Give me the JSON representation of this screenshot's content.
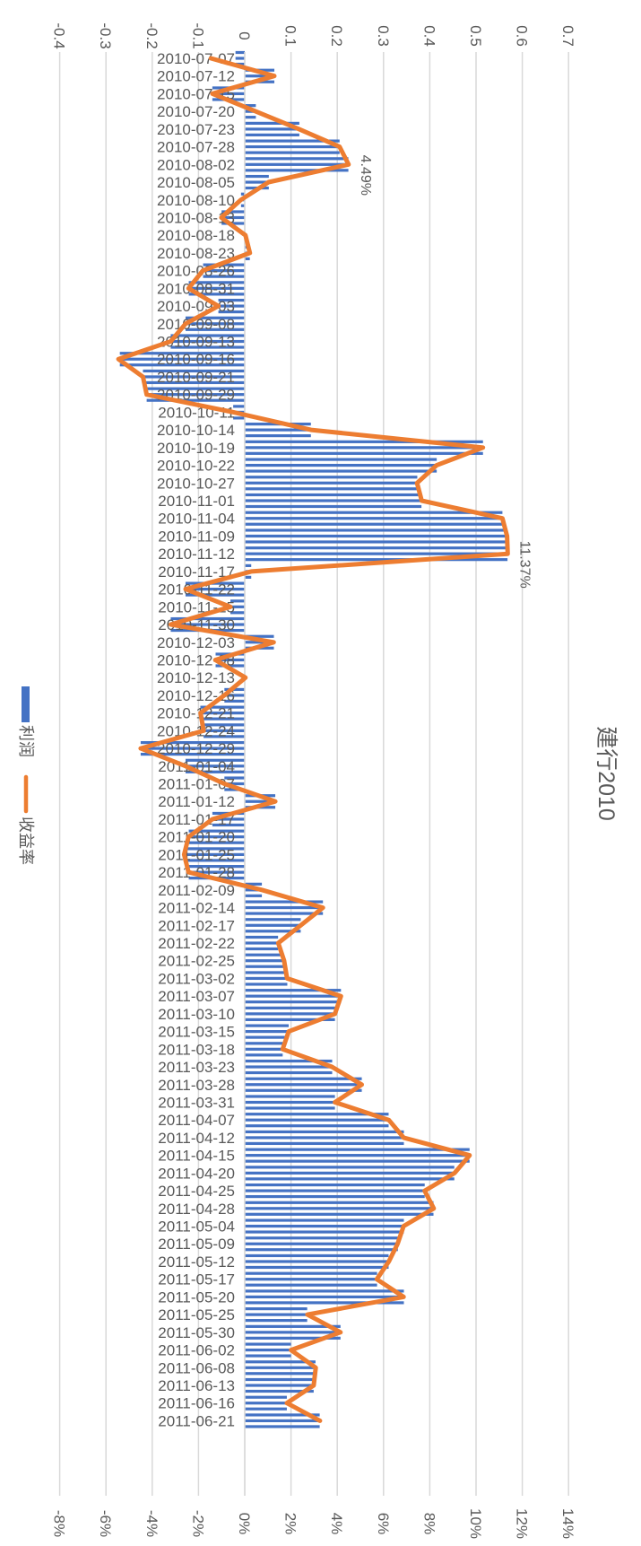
{
  "chart_data": {
    "type": "bar+line",
    "orientation": "rotated-90-clockwise",
    "title": "建行2010",
    "legend": {
      "position": "bottom",
      "entries": [
        "利润",
        "收益率"
      ]
    },
    "colors": {
      "bars": "#4472C4",
      "line": "#ED7D31",
      "grid": "#D9D9D9",
      "text": "#595959"
    },
    "primary_axis": {
      "min": -0.4,
      "max": 0.7,
      "step": 0.1,
      "ticks": [
        "-0.4",
        "-0.3",
        "-0.2",
        "-0.1",
        "0",
        "0.1",
        "0.2",
        "0.3",
        "0.4",
        "0.5",
        "0.6",
        "0.7"
      ]
    },
    "secondary_axis": {
      "min": -8,
      "max": 14,
      "step": 2,
      "unit": "%",
      "ticks": [
        "-8%",
        "-6%",
        "-4%",
        "-2%",
        "0%",
        "2%",
        "4%",
        "6%",
        "8%",
        "10%",
        "12%",
        "14%"
      ]
    },
    "grid": true,
    "categories": [
      "2010-07-07",
      "2010-07-12",
      "2010-07-15",
      "2010-07-20",
      "2010-07-23",
      "2010-07-28",
      "2010-08-02",
      "2010-08-05",
      "2010-08-10",
      "2010-08-13",
      "2010-08-18",
      "2010-08-23",
      "2010-08-26",
      "2010-08-31",
      "2010-09-03",
      "2010-09-08",
      "2010-09-13",
      "2010-09-16",
      "2010-09-21",
      "2010-09-29",
      "2010-10-11",
      "2010-10-14",
      "2010-10-19",
      "2010-10-22",
      "2010-10-27",
      "2010-11-01",
      "2010-11-04",
      "2010-11-09",
      "2010-11-12",
      "2010-11-17",
      "2010-11-22",
      "2010-11-25",
      "2010-11-30",
      "2010-12-03",
      "2010-12-08",
      "2010-12-13",
      "2010-12-16",
      "2010-12-21",
      "2010-12-24",
      "2010-12-29",
      "2011-01-04",
      "2011-01-07",
      "2011-01-12",
      "2011-01-17",
      "2011-01-20",
      "2011-01-25",
      "2011-01-28",
      "2011-02-09",
      "2011-02-14",
      "2011-02-17",
      "2011-02-22",
      "2011-02-25",
      "2011-03-02",
      "2011-03-07",
      "2011-03-10",
      "2011-03-15",
      "2011-03-18",
      "2011-03-23",
      "2011-03-28",
      "2011-03-31",
      "2011-04-07",
      "2011-04-12",
      "2011-04-15",
      "2011-04-20",
      "2011-04-25",
      "2011-04-28",
      "2011-05-04",
      "2011-05-09",
      "2011-05-12",
      "2011-05-17",
      "2011-05-20",
      "2011-05-25",
      "2011-05-30",
      "2011-06-02",
      "2011-06-08",
      "2011-06-13",
      "2011-06-16",
      "2011-06-21"
    ],
    "series": [
      {
        "name": "利润",
        "type": "bar",
        "axis": "primary",
        "values": [
          -0.02,
          0.064,
          -0.07,
          0.024,
          0.118,
          0.205,
          0.224,
          0.052,
          -0.008,
          -0.05,
          0.001,
          0.011,
          -0.09,
          -0.121,
          -0.057,
          -0.128,
          -0.16,
          -0.27,
          -0.22,
          -0.212,
          -0.025,
          0.143,
          0.515,
          0.415,
          0.373,
          0.382,
          0.557,
          0.567,
          0.568,
          0.014,
          -0.128,
          -0.031,
          -0.16,
          0.063,
          -0.063,
          0.001,
          -0.044,
          -0.096,
          -0.089,
          -0.225,
          -0.128,
          -0.044,
          0.066,
          -0.07,
          -0.121,
          -0.131,
          -0.121,
          0.037,
          0.169,
          0.121,
          0.072,
          0.085,
          0.092,
          0.208,
          0.195,
          0.095,
          0.082,
          0.189,
          0.253,
          0.195,
          0.311,
          0.344,
          0.486,
          0.453,
          0.389,
          0.408,
          0.344,
          0.331,
          0.311,
          0.286,
          0.344,
          0.135,
          0.207,
          0.1,
          0.153,
          0.149,
          0.091,
          0.162
        ]
      },
      {
        "name": "收益率",
        "type": "line",
        "axis": "secondary",
        "unit": "%",
        "values": [
          -1.46,
          1.28,
          -1.4,
          0.48,
          2.35,
          4.1,
          4.49,
          1.03,
          -0.17,
          -1.01,
          0.03,
          0.22,
          -1.81,
          -2.43,
          -1.14,
          -2.56,
          -3.2,
          -5.46,
          -4.4,
          -4.24,
          -0.49,
          2.87,
          10.3,
          8.29,
          7.45,
          7.65,
          11.14,
          11.34,
          11.37,
          0.28,
          -2.56,
          -0.62,
          -3.2,
          1.25,
          -1.27,
          0.03,
          -0.88,
          -1.91,
          -1.78,
          -4.5,
          -2.56,
          -0.88,
          1.32,
          -1.4,
          -2.43,
          -2.62,
          -2.43,
          0.74,
          3.38,
          2.42,
          1.45,
          1.7,
          1.83,
          4.16,
          3.9,
          1.9,
          1.64,
          3.77,
          5.06,
          3.9,
          6.23,
          6.87,
          9.72,
          9.07,
          7.78,
          8.17,
          6.87,
          6.61,
          6.23,
          5.71,
          6.87,
          2.71,
          4.14,
          2.0,
          3.07,
          2.98,
          1.82,
          3.25
        ]
      }
    ],
    "data_labels": [
      {
        "category": "2010-08-02",
        "series": "收益率",
        "text": "4.49%"
      },
      {
        "category": "2010-11-12",
        "series": "收益率",
        "text": "11.37%"
      }
    ]
  }
}
